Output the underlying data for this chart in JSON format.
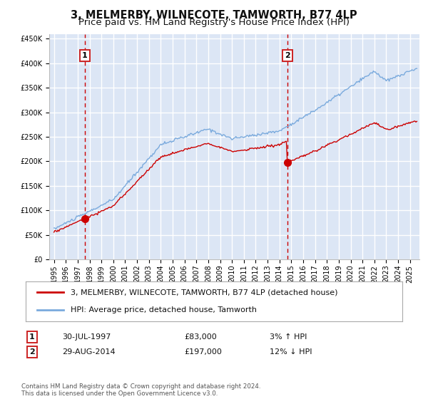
{
  "title": "3, MELMERBY, WILNECOTE, TAMWORTH, B77 4LP",
  "subtitle": "Price paid vs. HM Land Registry's House Price Index (HPI)",
  "red_label": "3, MELMERBY, WILNECOTE, TAMWORTH, B77 4LP (detached house)",
  "blue_label": "HPI: Average price, detached house, Tamworth",
  "annotation1_label": "1",
  "annotation1_date": "30-JUL-1997",
  "annotation1_price": "£83,000",
  "annotation1_hpi": "3% ↑ HPI",
  "annotation1_year": 1997.58,
  "annotation1_value": 83000,
  "annotation2_label": "2",
  "annotation2_date": "29-AUG-2014",
  "annotation2_price": "£197,000",
  "annotation2_hpi": "12% ↓ HPI",
  "annotation2_year": 2014.66,
  "annotation2_value": 197000,
  "ylim": [
    0,
    460000
  ],
  "xlim_start": 1994.6,
  "xlim_end": 2025.8,
  "background_color": "#dce6f5",
  "fig_color": "#ffffff",
  "grid_color": "#ffffff",
  "red_line_color": "#cc0000",
  "blue_line_color": "#7aaadd",
  "marker_color": "#cc0000",
  "dashed_color": "#cc0000",
  "copyright_text": "Contains HM Land Registry data © Crown copyright and database right 2024.\nThis data is licensed under the Open Government Licence v3.0.",
  "title_fontsize": 10.5,
  "subtitle_fontsize": 9.5,
  "legend_fontsize": 8,
  "tick_fontsize": 7
}
